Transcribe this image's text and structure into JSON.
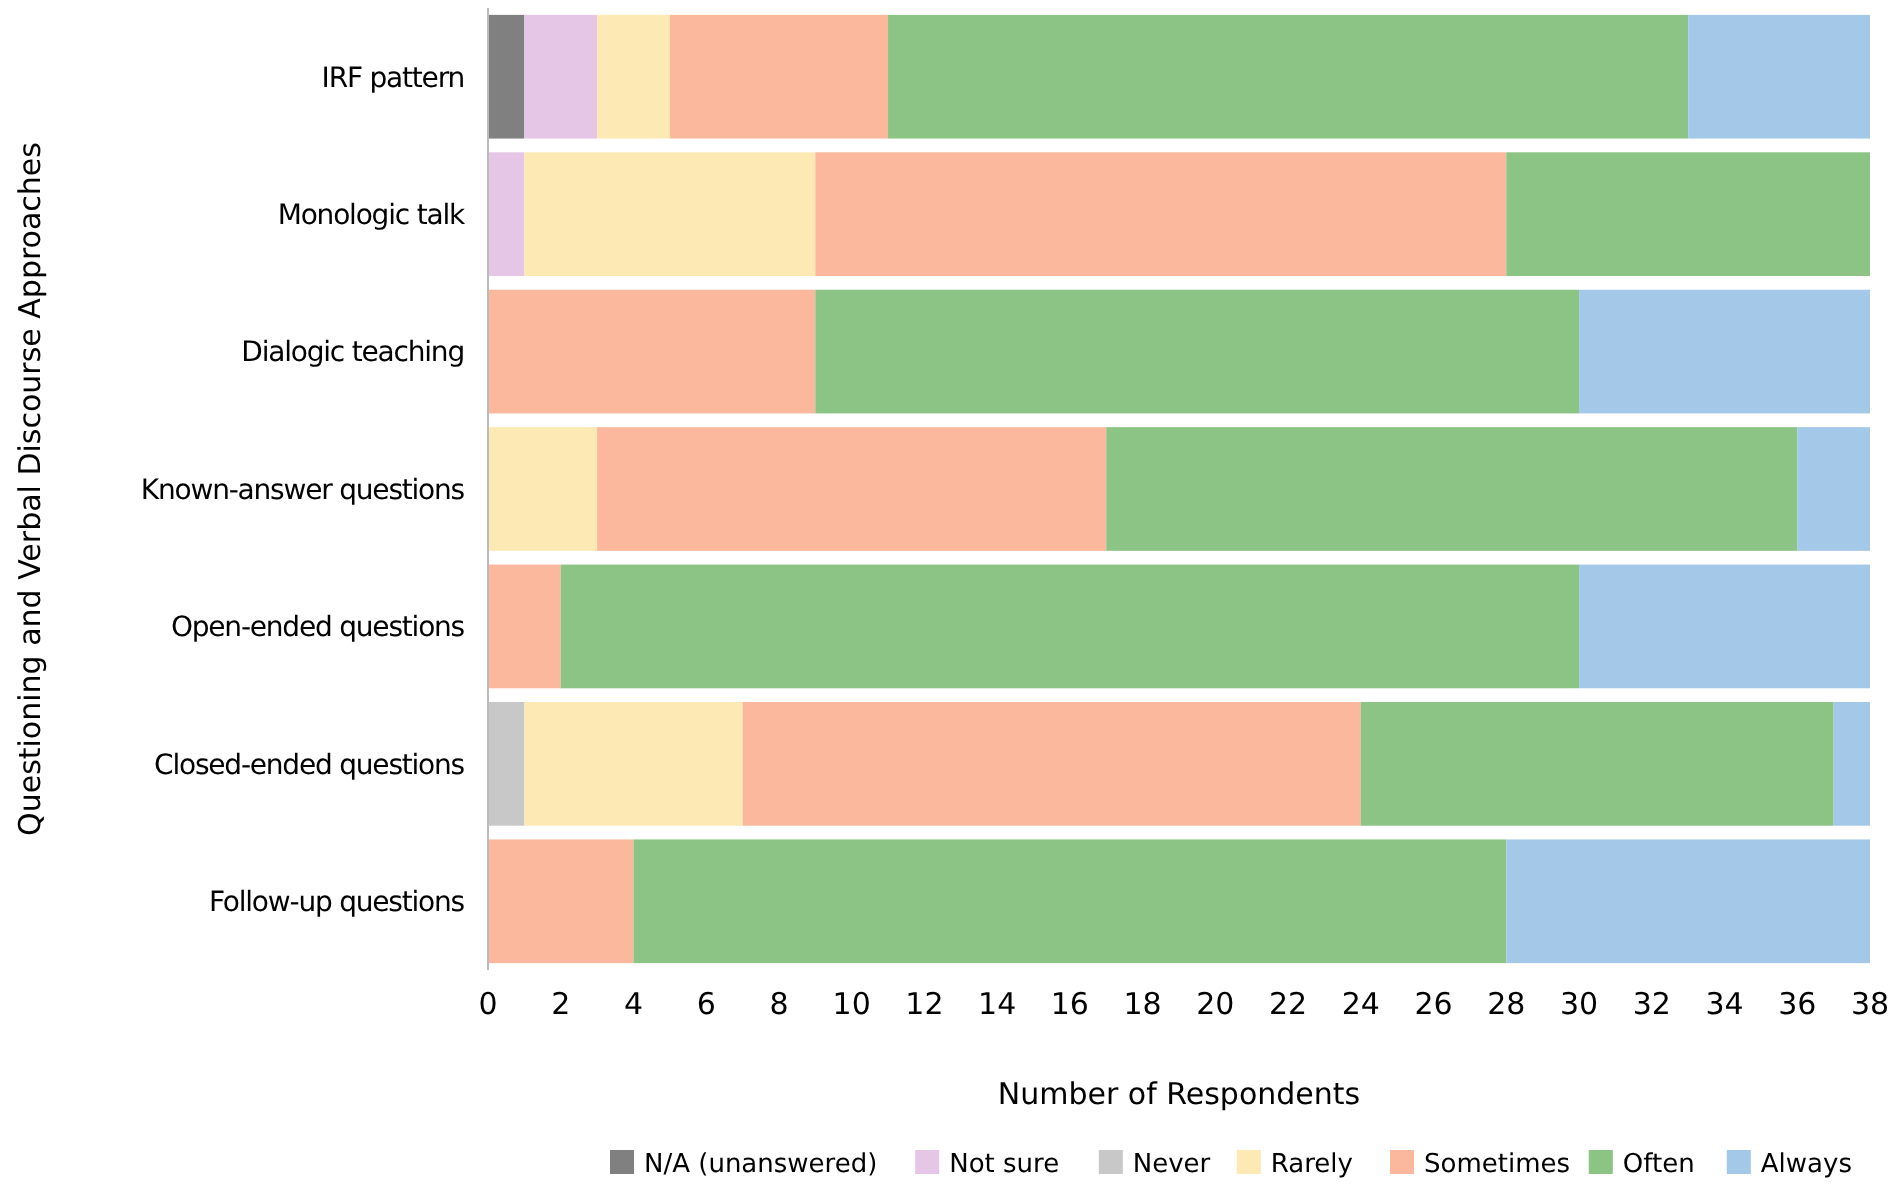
{
  "chart_data": {
    "type": "bar",
    "orientation": "horizontal",
    "stacked": true,
    "xlabel": "Number of Respondents",
    "ylabel": "Questioning and Verbal Discourse Approaches",
    "categories": [
      "IRF pattern",
      "Monologic talk",
      "Dialogic teaching",
      "Known-answer questions",
      "Open-ended questions",
      "Closed-ended questions",
      "Follow-up questions"
    ],
    "series": [
      {
        "name": "N/A (unanswered)",
        "color": "#808080",
        "values": [
          1,
          0,
          0,
          0,
          0,
          0,
          0
        ]
      },
      {
        "name": "Not sure",
        "color": "#e6c6e6",
        "values": [
          2,
          1,
          0,
          0,
          0,
          0,
          0
        ]
      },
      {
        "name": "Never",
        "color": "#c8c8c8",
        "values": [
          0,
          0,
          0,
          0,
          0,
          1,
          0
        ]
      },
      {
        "name": "Rarely",
        "color": "#fde9b4",
        "values": [
          2,
          8,
          0,
          3,
          0,
          6,
          0
        ]
      },
      {
        "name": "Sometimes",
        "color": "#fbb89c",
        "values": [
          6,
          19,
          9,
          14,
          2,
          17,
          4
        ]
      },
      {
        "name": "Often",
        "color": "#8bc484",
        "values": [
          22,
          10,
          21,
          19,
          28,
          13,
          24
        ]
      },
      {
        "name": "Always",
        "color": "#a4c8e8",
        "values": [
          5,
          0,
          8,
          2,
          8,
          1,
          10
        ]
      }
    ],
    "xlim": [
      0,
      38
    ],
    "xticks": [
      0,
      2,
      4,
      6,
      8,
      10,
      12,
      14,
      16,
      18,
      20,
      22,
      24,
      26,
      28,
      30,
      32,
      34,
      36,
      38
    ],
    "grid": false,
    "legend": "bottom"
  }
}
